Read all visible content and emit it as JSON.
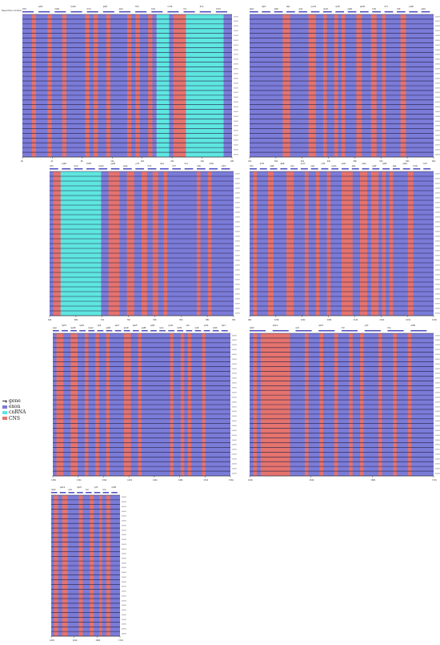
{
  "reference_label": "Nepenthes mirabilis",
  "legend": {
    "items": [
      {
        "label": "gene",
        "color": "#555555",
        "icon": "arrow-icon"
      },
      {
        "label": "exon",
        "color": "#7b7bd8",
        "icon": "swatch"
      },
      {
        "label": "cnRNA",
        "color": "#5ee6e0",
        "icon": "swatch"
      },
      {
        "label": "CNS",
        "color": "#e5736e",
        "icon": "swatch"
      }
    ]
  },
  "colors": {
    "exon": "#7b7bd8",
    "cnRNA": "#5ee6e0",
    "CNS": "#e5736e",
    "gene_bar": "#4b4bbf",
    "row_line": "#222244"
  },
  "pct_labels": [
    "100%",
    "50%"
  ],
  "panels": [
    {
      "genes": [
        "trnH",
        "psbA",
        "matK",
        "rps16",
        "trnQ",
        "psbK",
        "psbI",
        "trnS",
        "trnG",
        "rrn16",
        "trnI",
        "trnA",
        "rrn23"
      ],
      "ticks": [
        "0k",
        "4k",
        "8k",
        "12k",
        "16k",
        "20k",
        "24k",
        "28k"
      ]
    },
    {
      "genes": [
        "atpA",
        "atpF",
        "atpH",
        "atpI",
        "rps2",
        "rpoC2",
        "rpoC1",
        "rpoB",
        "petN",
        "psbM",
        "trnD",
        "trnY",
        "trnE",
        "psbD",
        "psbC"
      ],
      "ticks": [
        "32k",
        "36k",
        "40k",
        "44k",
        "48k",
        "52k",
        "56k",
        "60k"
      ]
    },
    {
      "genes": [
        "trnS",
        "psbZ",
        "trnG",
        "trnfM",
        "rps14",
        "psaB",
        "psaA",
        "ycf3",
        "trnS",
        "rps4",
        "trnT",
        "trnL",
        "ndhJ",
        "ndhK",
        "ndhC"
      ],
      "ticks": [
        "64k",
        "68k",
        "72k",
        "76k",
        "80k",
        "84k",
        "88k",
        "92k"
      ]
    },
    {
      "genes": [
        "trnV",
        "trnM",
        "atpE",
        "atpB",
        "rbcL",
        "accD",
        "psaI",
        "ycf4",
        "cemA",
        "petA",
        "psbJ",
        "psbL",
        "psbF",
        "psbE",
        "petL",
        "petG",
        "trnW",
        "trnP"
      ],
      "ticks": [
        "96k",
        "100k",
        "104k",
        "108k",
        "112k",
        "116k",
        "120k",
        "124k"
      ]
    },
    {
      "genes": [
        "psaJ",
        "rpl33",
        "rps18",
        "rpl20",
        "rps12",
        "clpP",
        "psbB",
        "psbT",
        "psbN",
        "psbH",
        "petB",
        "petD",
        "rpoA",
        "rps11",
        "rpl36",
        "infA",
        "rps8",
        "rpl14",
        "rpl16",
        "rps3"
      ],
      "ticks": [
        "128k",
        "132k",
        "136k",
        "140k",
        "144k",
        "148k",
        "152k",
        "156k"
      ]
    },
    {
      "genes": [
        "rpl22",
        "rps19",
        "rpl2",
        "rpl23",
        "trnI",
        "ycf2",
        "trnL",
        "ndhB"
      ],
      "ticks": [
        "160k",
        "164k",
        "168k",
        "172k"
      ]
    }
  ]
}
